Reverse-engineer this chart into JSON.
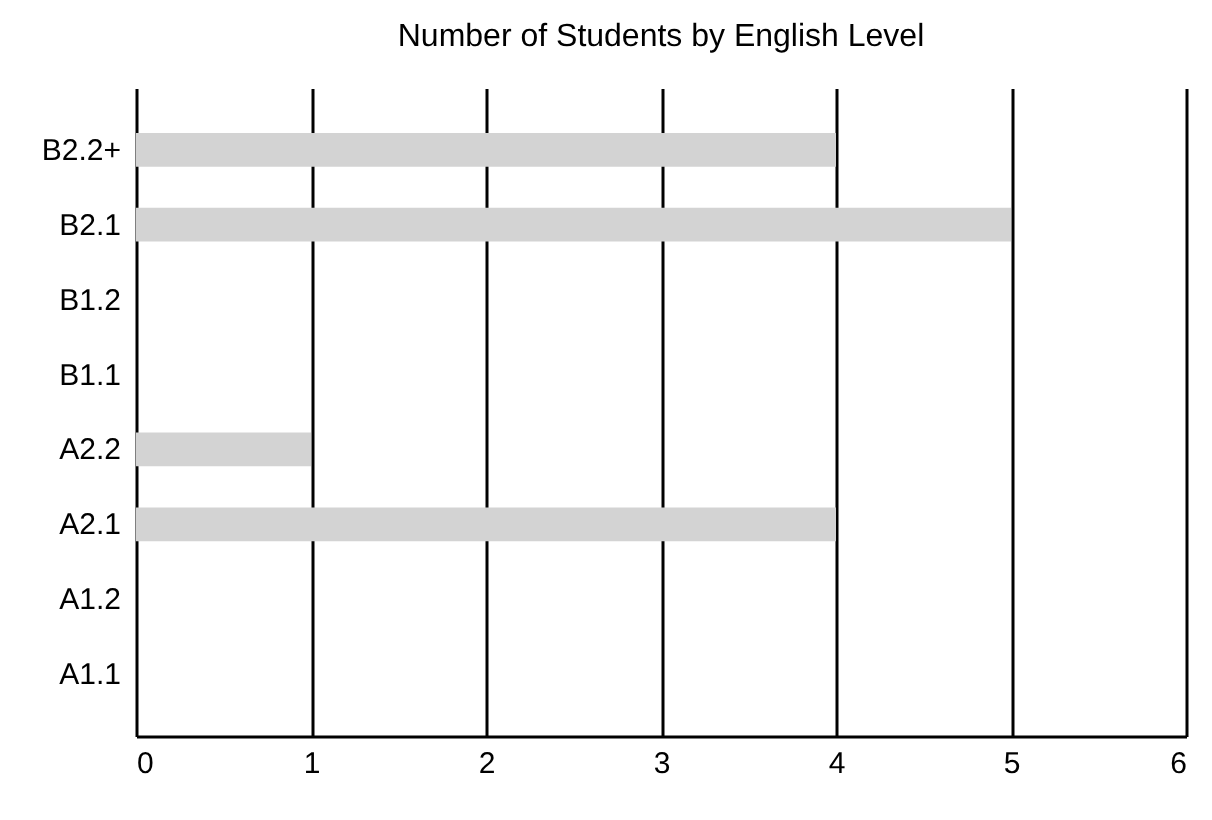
{
  "chart_data": {
    "type": "bar",
    "title": "Number of Students by English Level",
    "orientation": "horizontal",
    "categories": [
      "B2.2+",
      "B2.1",
      "B1.2",
      "B1.1",
      "A2.2",
      "A2.1",
      "A1.2",
      "A1.1"
    ],
    "values": [
      4,
      5,
      0,
      0,
      1,
      4,
      0,
      0
    ],
    "color": "#d3d3d3",
    "xlim": [
      0,
      6
    ],
    "xticks": [
      0,
      1,
      2,
      3,
      4,
      5,
      6
    ],
    "grid": "x"
  }
}
